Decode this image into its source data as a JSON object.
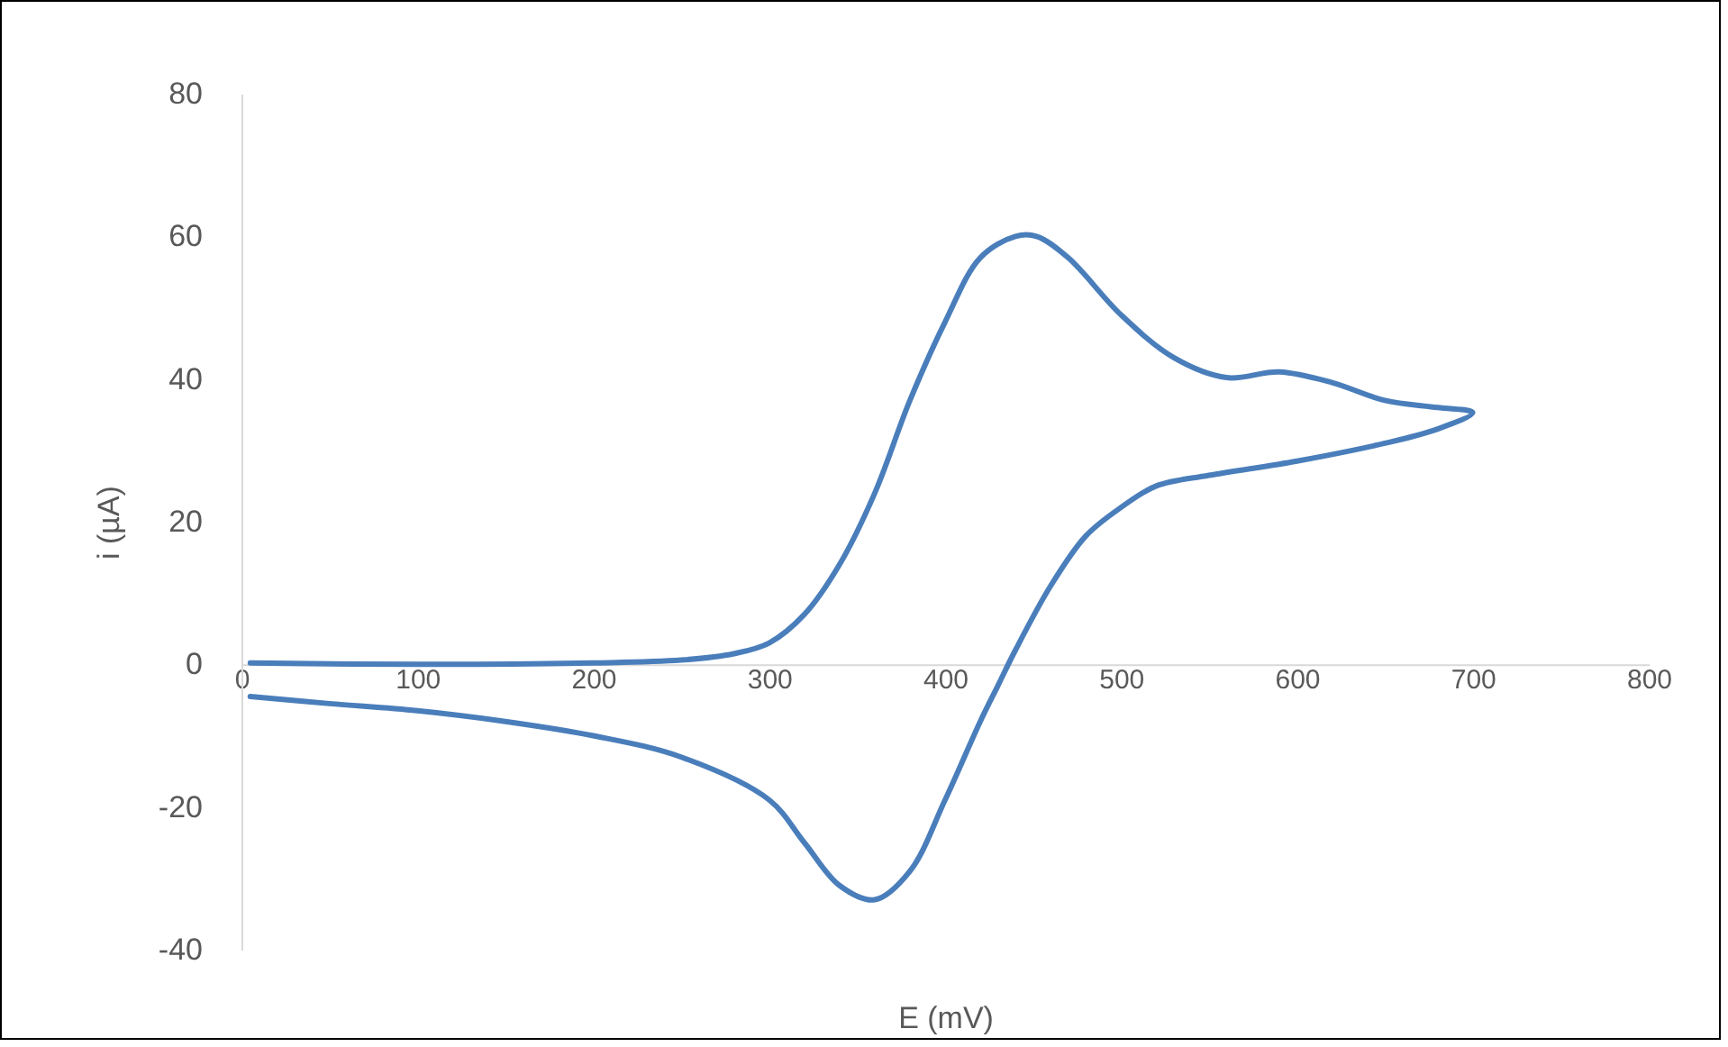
{
  "chart_data": {
    "type": "line",
    "xlabel": "E (mV)",
    "ylabel": "i (µA)",
    "xlim": [
      0,
      800
    ],
    "xticks": [
      0,
      100,
      200,
      300,
      400,
      500,
      600,
      700,
      800
    ],
    "ylim": [
      -40,
      80
    ],
    "yticks": [
      -40,
      -20,
      0,
      20,
      40,
      60,
      80
    ],
    "grid": false,
    "legend": false,
    "series": [
      {
        "color": "#4a7ebb",
        "x": [
          5,
          100,
          200,
          250,
          280,
          300,
          320,
          340,
          360,
          380,
          400,
          420,
          440,
          452,
          470,
          500,
          530,
          560,
          590,
          620,
          650,
          680,
          700,
          680,
          650,
          600,
          550,
          520,
          500,
          480,
          460,
          440,
          430,
          420,
          400,
          380,
          360,
          340,
          320,
          300,
          250,
          200,
          150,
          100,
          50,
          5
        ],
        "values": [
          0.2,
          0,
          0.2,
          0.6,
          1.5,
          3,
          7,
          14,
          24,
          37,
          48,
          57,
          60,
          60,
          57,
          49,
          43,
          40.2,
          41,
          39.5,
          37,
          36,
          35.3,
          33,
          31,
          28.5,
          26.5,
          25,
          22,
          18,
          11,
          2,
          -3,
          -8,
          -19,
          -29,
          -33,
          -31,
          -25,
          -19,
          -13,
          -10,
          -8,
          -6.5,
          -5.5,
          -4.5
        ]
      }
    ]
  }
}
